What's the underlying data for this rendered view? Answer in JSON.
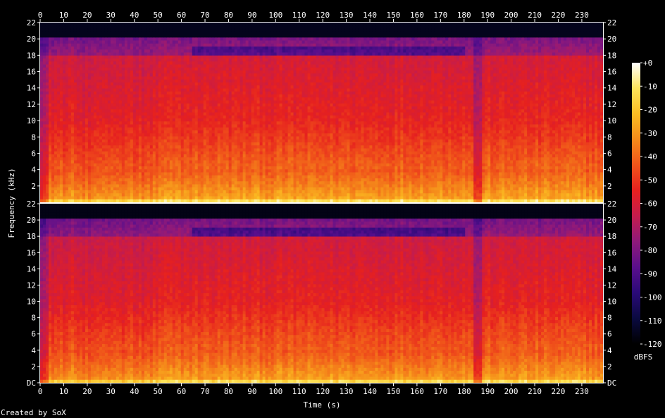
{
  "chart_data": {
    "type": "heatmap",
    "title": "",
    "xlabel": "Time (s)",
    "ylabel": "Frequency (kHz)",
    "colorbar_label": "dBFS",
    "footer": "Created by SoX",
    "x_range": [
      0,
      239
    ],
    "x_ticks": [
      0,
      10,
      20,
      30,
      40,
      50,
      60,
      70,
      80,
      90,
      100,
      110,
      120,
      130,
      140,
      150,
      160,
      170,
      180,
      190,
      200,
      210,
      220,
      230
    ],
    "y_range": [
      0,
      22
    ],
    "y_ticks_top": [
      "2",
      "4",
      "6",
      "8",
      "10",
      "12",
      "14",
      "16",
      "18",
      "20",
      "22"
    ],
    "y_ticks_bottom": [
      "DC",
      "2",
      "4",
      "6",
      "8",
      "10",
      "12",
      "14",
      "16",
      "18",
      "20",
      "22"
    ],
    "colorbar_range": [
      -120,
      0
    ],
    "colorbar_ticks": [
      "+0",
      "-10",
      "-20",
      "-30",
      "-40",
      "-50",
      "-60",
      "-70",
      "-80",
      "-90",
      "-100",
      "-110",
      "-120"
    ],
    "channels": 2,
    "cutoff_khz": 20,
    "quiet_time_s": [
      3,
      186
    ],
    "bright_band_khz": [
      0,
      4
    ],
    "colors": {
      "background": "#000000",
      "text": "#ffffff",
      "colormap": [
        "#000000",
        "#0a0a40",
        "#2a0a78",
        "#5a0f8c",
        "#8f1a7a",
        "#c41c4d",
        "#e6201f",
        "#f0541a",
        "#f58a1a",
        "#fbbd22",
        "#fde45a",
        "#ffffff"
      ]
    }
  }
}
